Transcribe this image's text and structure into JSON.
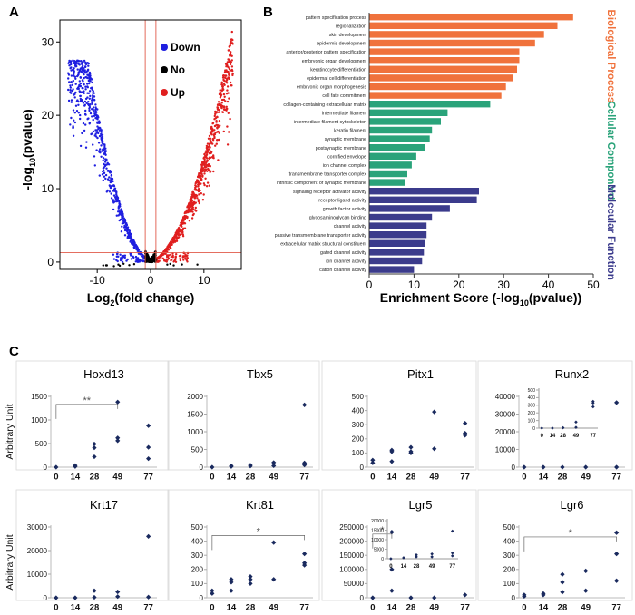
{
  "colors": {
    "down": "#1f1fe0",
    "no": "#000000",
    "up": "#e01f1f",
    "threshold": "#e05a4a",
    "bp": "#f0723c",
    "cc": "#2aa37a",
    "mf": "#3b3b8c",
    "scatter": "#1a2a5e",
    "axis": "#333333",
    "frame": "#999999"
  },
  "panel_labels": {
    "a": "A",
    "b": "B",
    "c": "C"
  },
  "chart_data": [
    {
      "id": "volcano",
      "type": "scatter",
      "title": "",
      "xlabel_base": "Log",
      "xlabel_sub": "2",
      "xlabel_rest": "(fold change)",
      "ylabel_pre": "-log",
      "ylabel_sub": "10",
      "ylabel_post": "(pvalue)",
      "xlim": [
        -17,
        17
      ],
      "ylim": [
        -1,
        33
      ],
      "xticks": [
        -10,
        0,
        10
      ],
      "yticks": [
        0,
        10,
        20,
        30
      ],
      "thresholds": {
        "x": [
          -1,
          1
        ],
        "y": 1.3
      },
      "legend": [
        {
          "label": "Down",
          "color_key": "down"
        },
        {
          "label": "No",
          "color_key": "no"
        },
        {
          "label": "Up",
          "color_key": "up"
        }
      ],
      "series": [
        {
          "name": "Down",
          "color_key": "down",
          "x_range": [
            -15.5,
            -1
          ],
          "y_max": 27
        },
        {
          "name": "No",
          "color_key": "no",
          "x_range": [
            -1,
            1
          ],
          "y_max": 1.3
        },
        {
          "name": "Up",
          "color_key": "up",
          "x_range": [
            1,
            15.5
          ],
          "y_max": 31
        }
      ]
    },
    {
      "id": "enrichment",
      "type": "bar",
      "orientation": "horizontal",
      "xlabel": "Enrichment Score (-log",
      "xlabel_sub": "10",
      "xlabel_post": "(pvalue))",
      "xlim": [
        0,
        50
      ],
      "xticks": [
        0,
        10,
        20,
        30,
        40,
        50
      ],
      "groups": [
        {
          "name": "Biological Process",
          "color_key": "bp",
          "categories": [
            "pattern specification process",
            "regionalization",
            "skin development",
            "epidermis development",
            "anterior/posterior pattern specification",
            "embryonic organ development",
            "keratinocyte differentiation",
            "epidermal cell differentiation",
            "embryonic organ morphogenesis",
            "cell fate commitment"
          ],
          "values": [
            45.5,
            42,
            39,
            37,
            33.5,
            33.5,
            33,
            32,
            30.5,
            29.5
          ]
        },
        {
          "name": "Cellular Component",
          "color_key": "cc",
          "categories": [
            "collagen-containing extracellular matrix",
            "intermediate filament",
            "intermediate filament cytoskeleton",
            "keratin filament",
            "synaptic membrane",
            "postsynaptic membrane",
            "cornified envelope",
            "ion channel complex",
            "transmembrane transporter complex",
            "intrinsic component of synaptic membrane"
          ],
          "values": [
            27,
            17.5,
            16,
            14,
            13.5,
            12.5,
            10.5,
            9.5,
            8.5,
            8
          ]
        },
        {
          "name": "Molecular Function",
          "color_key": "mf",
          "categories": [
            "signaling receptor activator activity",
            "receptor ligand activity",
            "growth factor activity",
            "glycosaminoglycan binding",
            "channel activity",
            "passive transmembrane transporter activity",
            "extracellular matrix structural constituent",
            "gated channel activity",
            "ion channel activity",
            "cation channel activity"
          ],
          "values": [
            24.5,
            24,
            18,
            14,
            12.8,
            12.8,
            12.5,
            12.2,
            11.8,
            10
          ]
        }
      ]
    },
    {
      "id": "expression",
      "type": "scatter",
      "ylabel": "Arbitrary Unit",
      "x_categories": [
        "0",
        "14",
        "28",
        "49",
        "77"
      ],
      "panels": [
        {
          "gene": "Hoxd13",
          "yticks": [
            0,
            500,
            1000,
            1500
          ],
          "ylim": [
            0,
            1500
          ],
          "sig": "**",
          "sig_from": "0",
          "sig_to": "49",
          "sig_level": 1330,
          "points": [
            [
              "0",
              0
            ],
            [
              "14",
              15
            ],
            [
              "14",
              35
            ],
            [
              "28",
              220
            ],
            [
              "28",
              410
            ],
            [
              "28",
              490
            ],
            [
              "49",
              560
            ],
            [
              "49",
              620
            ],
            [
              "49",
              1380
            ],
            [
              "77",
              180
            ],
            [
              "77",
              420
            ],
            [
              "77",
              880
            ]
          ]
        },
        {
          "gene": "Tbx5",
          "yticks": [
            0,
            500,
            1000,
            1500,
            2000
          ],
          "ylim": [
            0,
            2000
          ],
          "points": [
            [
              "0",
              0
            ],
            [
              "14",
              20
            ],
            [
              "14",
              40
            ],
            [
              "28",
              30
            ],
            [
              "28",
              55
            ],
            [
              "49",
              40
            ],
            [
              "49",
              130
            ],
            [
              "77",
              60
            ],
            [
              "77",
              120
            ],
            [
              "77",
              1760
            ]
          ]
        },
        {
          "gene": "Pitx1",
          "yticks": [
            0,
            100,
            200,
            300,
            400,
            500
          ],
          "ylim": [
            0,
            500
          ],
          "points": [
            [
              "0",
              30
            ],
            [
              "0",
              50
            ],
            [
              "14",
              40
            ],
            [
              "14",
              110
            ],
            [
              "14",
              120
            ],
            [
              "28",
              100
            ],
            [
              "28",
              110
            ],
            [
              "28",
              140
            ],
            [
              "49",
              130
            ],
            [
              "49",
              390
            ],
            [
              "77",
              225
            ],
            [
              "77",
              240
            ],
            [
              "77",
              310
            ]
          ]
        },
        {
          "gene": "Runx2",
          "yticks": [
            0,
            10000,
            20000,
            30000,
            40000
          ],
          "ylim": [
            0,
            40000
          ],
          "points": [
            [
              "0",
              0
            ],
            [
              "14",
              0
            ],
            [
              "28",
              0
            ],
            [
              "49",
              0
            ],
            [
              "77",
              0
            ],
            [
              "77",
              36500
            ]
          ],
          "inset": {
            "yticks": [
              0,
              100,
              200,
              300,
              400,
              500
            ],
            "ylim": [
              0,
              500
            ],
            "points": [
              [
                "0",
                0
              ],
              [
                "14",
                0
              ],
              [
                "28",
                5
              ],
              [
                "49",
                10
              ],
              [
                "49",
                80
              ],
              [
                "77",
                280
              ],
              [
                "77",
                330
              ],
              [
                "77",
                350
              ]
            ]
          }
        },
        {
          "gene": "Krt17",
          "yticks": [
            0,
            10000,
            20000,
            30000
          ],
          "ylim": [
            0,
            30000
          ],
          "points": [
            [
              "0",
              0
            ],
            [
              "14",
              0
            ],
            [
              "28",
              200
            ],
            [
              "28",
              3000
            ],
            [
              "49",
              500
            ],
            [
              "49",
              2500
            ],
            [
              "77",
              300
            ],
            [
              "77",
              26000
            ]
          ]
        },
        {
          "gene": "Krt81",
          "yticks": [
            0,
            100,
            200,
            300,
            400,
            500
          ],
          "ylim": [
            0,
            500
          ],
          "sig": "*",
          "sig_from": "0",
          "sig_to": "77",
          "sig_level": 440,
          "points": [
            [
              "0",
              30
            ],
            [
              "0",
              50
            ],
            [
              "14",
              50
            ],
            [
              "14",
              110
            ],
            [
              "14",
              130
            ],
            [
              "28",
              100
            ],
            [
              "28",
              130
            ],
            [
              "28",
              150
            ],
            [
              "49",
              130
            ],
            [
              "49",
              390
            ],
            [
              "77",
              230
            ],
            [
              "77",
              245
            ],
            [
              "77",
              310
            ]
          ]
        },
        {
          "gene": "Lgr5",
          "yticks": [
            0,
            50000,
            100000,
            150000,
            200000,
            250000
          ],
          "ylim": [
            0,
            250000
          ],
          "sig": "*",
          "sig_from": "0",
          "sig_to": "14",
          "sig_level": 225000,
          "points": [
            [
              "0",
              0
            ],
            [
              "14",
              25000
            ],
            [
              "14",
              100000
            ],
            [
              "14",
              232000
            ],
            [
              "28",
              0
            ],
            [
              "49",
              0
            ],
            [
              "77",
              10000
            ]
          ],
          "inset": {
            "yticks": [
              0,
              5000,
              10000,
              15000,
              20000
            ],
            "ylim": [
              0,
              20000
            ],
            "points": [
              [
                "0",
                0
              ],
              [
                "14",
                500
              ],
              [
                "28",
                1000
              ],
              [
                "28",
                2000
              ],
              [
                "49",
                1000
              ],
              [
                "49",
                2500
              ],
              [
                "77",
                1500
              ],
              [
                "77",
                3000
              ],
              [
                "77",
                14500
              ]
            ]
          }
        },
        {
          "gene": "Lgr6",
          "yticks": [
            0,
            100,
            200,
            300,
            400,
            500
          ],
          "ylim": [
            0,
            500
          ],
          "sig": "*",
          "sig_from": "0",
          "sig_to": "77",
          "sig_level": 430,
          "points": [
            [
              "0",
              10
            ],
            [
              "0",
              20
            ],
            [
              "14",
              20
            ],
            [
              "14",
              30
            ],
            [
              "28",
              40
            ],
            [
              "28",
              110
            ],
            [
              "28",
              165
            ],
            [
              "49",
              50
            ],
            [
              "49",
              190
            ],
            [
              "77",
              120
            ],
            [
              "77",
              310
            ],
            [
              "77",
              460
            ]
          ]
        }
      ]
    }
  ]
}
